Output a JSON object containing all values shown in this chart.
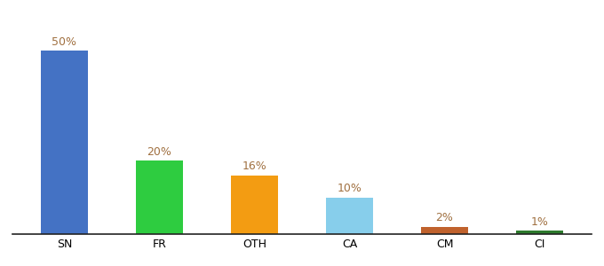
{
  "categories": [
    "SN",
    "FR",
    "OTH",
    "CA",
    "CM",
    "CI"
  ],
  "values": [
    50,
    20,
    16,
    10,
    2,
    1
  ],
  "bar_colors": [
    "#4472c4",
    "#2ecc40",
    "#f39c12",
    "#87ceeb",
    "#c0622d",
    "#2d7a2d"
  ],
  "labels": [
    "50%",
    "20%",
    "16%",
    "10%",
    "2%",
    "1%"
  ],
  "ylim": [
    0,
    58
  ],
  "label_color": "#a07040",
  "label_fontsize": 9,
  "tick_fontsize": 9,
  "bar_width": 0.5,
  "background_color": "#ffffff"
}
